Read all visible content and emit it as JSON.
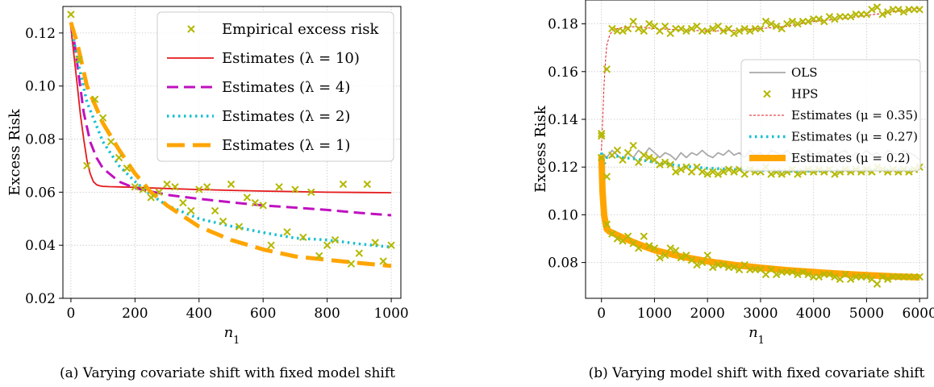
{
  "chart_data": [
    {
      "type": "line",
      "caption": "(a) Varying covariate shift with fixed model shift",
      "xlabel": "n_1",
      "ylabel": "Excess Risk",
      "xlim": [
        -25,
        1030
      ],
      "ylim": [
        0.02,
        0.13
      ],
      "xticks": [
        0,
        200,
        400,
        600,
        800,
        1000
      ],
      "yticks": [
        0.02,
        0.04,
        0.06,
        0.08,
        0.1,
        0.12
      ],
      "xtick_labels": [
        "0",
        "200",
        "400",
        "600",
        "800",
        "1000"
      ],
      "ytick_labels": [
        "0.02",
        "0.04",
        "0.06",
        "0.08",
        "0.10",
        "0.12"
      ],
      "grid": true,
      "legend_position": "top-right",
      "series": [
        {
          "name": "Empirical excess risk",
          "kind": "marker",
          "color": "#b5b800",
          "x": [
            0,
            25,
            50,
            75,
            100,
            125,
            150,
            175,
            200,
            225,
            250,
            275,
            300,
            325,
            350,
            375,
            400,
            425,
            450,
            475,
            500,
            525,
            550,
            575,
            600,
            625,
            650,
            675,
            700,
            725,
            750,
            775,
            800,
            825,
            850,
            875,
            900,
            925,
            950,
            975,
            1000
          ],
          "y": [
            0.127,
            0.11,
            0.07,
            0.095,
            0.088,
            0.079,
            0.073,
            0.069,
            0.062,
            0.061,
            0.058,
            0.06,
            0.063,
            0.062,
            0.056,
            0.053,
            0.061,
            0.062,
            0.053,
            0.049,
            0.063,
            0.047,
            0.058,
            0.056,
            0.055,
            0.04,
            0.062,
            0.045,
            0.061,
            0.043,
            0.06,
            0.036,
            0.04,
            0.042,
            0.063,
            0.033,
            0.037,
            0.063,
            0.041,
            0.034,
            0.04
          ]
        },
        {
          "name": "Estimates (λ = 10)",
          "kind": "line",
          "color": "#e41a1c",
          "dash": "solid",
          "x": [
            0,
            10,
            20,
            30,
            40,
            50,
            60,
            70,
            80,
            90,
            100,
            120,
            150,
            200,
            300,
            400,
            500,
            600,
            700,
            800,
            900,
            1000
          ],
          "y": [
            0.122,
            0.111,
            0.1,
            0.089,
            0.08,
            0.072,
            0.067,
            0.064,
            0.0628,
            0.0624,
            0.0622,
            0.0621,
            0.062,
            0.0618,
            0.0614,
            0.061,
            0.0607,
            0.0604,
            0.0602,
            0.06,
            0.0599,
            0.0598
          ]
        },
        {
          "name": "Estimates (λ = 4)",
          "kind": "line",
          "color": "#c010c0",
          "dash": "dashed",
          "x": [
            0,
            10,
            20,
            40,
            60,
            80,
            100,
            150,
            200,
            300,
            400,
            500,
            600,
            700,
            800,
            900,
            1000
          ],
          "y": [
            0.123,
            0.117,
            0.108,
            0.09,
            0.079,
            0.073,
            0.069,
            0.064,
            0.0615,
            0.059,
            0.0575,
            0.0562,
            0.055,
            0.0542,
            0.0533,
            0.0522,
            0.0513
          ]
        },
        {
          "name": "Estimates (λ = 2)",
          "kind": "line",
          "color": "#17c0d0",
          "dash": "dotted",
          "x": [
            0,
            20,
            50,
            100,
            150,
            200,
            250,
            300,
            400,
            500,
            600,
            700,
            800,
            900,
            1000
          ],
          "y": [
            0.124,
            0.11,
            0.094,
            0.079,
            0.07,
            0.064,
            0.059,
            0.055,
            0.05,
            0.0472,
            0.0448,
            0.0427,
            0.042,
            0.0405,
            0.0393
          ]
        },
        {
          "name": "Estimates (λ = 1)",
          "kind": "line",
          "color": "#ffa500",
          "dash": "longdash",
          "x": [
            0,
            20,
            50,
            100,
            150,
            200,
            250,
            300,
            400,
            500,
            600,
            700,
            800,
            900,
            1000
          ],
          "y": [
            0.124,
            0.116,
            0.1,
            0.086,
            0.076,
            0.067,
            0.06,
            0.055,
            0.047,
            0.042,
            0.0384,
            0.0358,
            0.0345,
            0.0333,
            0.0322
          ]
        }
      ]
    },
    {
      "type": "line",
      "caption": "(b) Varying model shift with fixed covariate shift",
      "xlabel": "n_1",
      "ylabel": "Excess Risk",
      "xlim": [
        -300,
        6150
      ],
      "ylim": [
        0.065,
        0.19
      ],
      "xticks": [
        0,
        1000,
        2000,
        3000,
        4000,
        5000,
        6000
      ],
      "yticks": [
        0.08,
        0.1,
        0.12,
        0.14,
        0.16,
        0.18
      ],
      "xtick_labels": [
        "0",
        "1000",
        "2000",
        "3000",
        "4000",
        "5000",
        "6000"
      ],
      "ytick_labels": [
        "0.08",
        "0.10",
        "0.12",
        "0.14",
        "0.16",
        "0.18"
      ],
      "grid": true,
      "legend_position": "center-right",
      "series": [
        {
          "name": "OLS",
          "kind": "line",
          "color": "#aaaaaa",
          "dash": "solid",
          "x": [
            0,
            100,
            200,
            300,
            400,
            500,
            600,
            700,
            800,
            900,
            1000,
            1100,
            1200,
            1300,
            1400,
            1500,
            1600,
            1700,
            1800,
            1900,
            2000,
            2100,
            2200,
            2300,
            2400,
            2500,
            2600,
            2700,
            2800,
            2900,
            3000,
            3100,
            3200,
            3300,
            3400,
            3500,
            3600,
            3700,
            3800,
            3900,
            4000,
            4100,
            4200,
            4300,
            4400,
            4500,
            4600,
            4700,
            4800,
            4900,
            5000,
            5100,
            5200,
            5300,
            5400,
            5500,
            5600,
            5700,
            5800,
            5900,
            6000
          ],
          "y": [
            0.126,
            0.124,
            0.127,
            0.125,
            0.123,
            0.126,
            0.124,
            0.127,
            0.125,
            0.128,
            0.126,
            0.124,
            0.126,
            0.125,
            0.123,
            0.126,
            0.124,
            0.126,
            0.125,
            0.127,
            0.125,
            0.124,
            0.126,
            0.125,
            0.127,
            0.125,
            0.126,
            0.124,
            0.127,
            0.125,
            0.126,
            0.124,
            0.127,
            0.126,
            0.125,
            0.127,
            0.125,
            0.126,
            0.124,
            0.127,
            0.125,
            0.126,
            0.124,
            0.127,
            0.125,
            0.126,
            0.127,
            0.124,
            0.126,
            0.125,
            0.127,
            0.125,
            0.126,
            0.124,
            0.127,
            0.126,
            0.125,
            0.127,
            0.126,
            0.125,
            0.123
          ]
        },
        {
          "name": "HPS",
          "kind": "marker",
          "color": "#b5b800",
          "x": [
            0,
            100,
            200,
            300,
            400,
            500,
            600,
            700,
            800,
            900,
            1000,
            1100,
            1200,
            1300,
            1400,
            1500,
            1600,
            1700,
            1800,
            1900,
            2000,
            2100,
            2200,
            2300,
            2400,
            2500,
            2600,
            2700,
            2800,
            2900,
            3000,
            3100,
            3200,
            3300,
            3400,
            3500,
            3600,
            3700,
            3800,
            3900,
            4000,
            4100,
            4200,
            4300,
            4400,
            4500,
            4600,
            4700,
            4800,
            4900,
            5000,
            5100,
            5200,
            5300,
            5400,
            5500,
            5600,
            5700,
            5800,
            5900,
            6000
          ],
          "y1": [
            0.133,
            0.161,
            0.178,
            0.177,
            0.177,
            0.178,
            0.181,
            0.178,
            0.177,
            0.18,
            0.179,
            0.177,
            0.179,
            0.176,
            0.178,
            0.178,
            0.177,
            0.178,
            0.179,
            0.177,
            0.177,
            0.178,
            0.179,
            0.177,
            0.178,
            0.176,
            0.177,
            0.178,
            0.177,
            0.178,
            0.178,
            0.181,
            0.18,
            0.179,
            0.178,
            0.18,
            0.181,
            0.18,
            0.181,
            0.181,
            0.182,
            0.182,
            0.181,
            0.183,
            0.182,
            0.183,
            0.183,
            0.183,
            0.184,
            0.184,
            0.184,
            0.186,
            0.187,
            0.184,
            0.185,
            0.186,
            0.186,
            0.185,
            0.186,
            0.186,
            0.186
          ],
          "y2": [
            0.134,
            0.116,
            0.125,
            0.127,
            0.123,
            0.126,
            0.129,
            0.122,
            0.125,
            0.124,
            0.123,
            0.121,
            0.122,
            0.121,
            0.118,
            0.119,
            0.12,
            0.118,
            0.12,
            0.118,
            0.117,
            0.118,
            0.117,
            0.118,
            0.119,
            0.118,
            0.119,
            0.117,
            0.119,
            0.118,
            0.118,
            0.12,
            0.117,
            0.118,
            0.117,
            0.118,
            0.119,
            0.117,
            0.118,
            0.119,
            0.118,
            0.119,
            0.118,
            0.119,
            0.117,
            0.118,
            0.119,
            0.118,
            0.119,
            0.118,
            0.119,
            0.118,
            0.12,
            0.119,
            0.118,
            0.119,
            0.118,
            0.119,
            0.118,
            0.119,
            0.12
          ],
          "y3": [
            0.124,
            0.096,
            0.092,
            0.09,
            0.089,
            0.091,
            0.088,
            0.086,
            0.091,
            0.087,
            0.086,
            0.082,
            0.083,
            0.086,
            0.085,
            0.082,
            0.083,
            0.081,
            0.079,
            0.08,
            0.083,
            0.078,
            0.079,
            0.079,
            0.078,
            0.078,
            0.077,
            0.079,
            0.077,
            0.077,
            0.077,
            0.075,
            0.077,
            0.075,
            0.076,
            0.076,
            0.076,
            0.075,
            0.076,
            0.075,
            0.074,
            0.074,
            0.075,
            0.075,
            0.074,
            0.073,
            0.075,
            0.073,
            0.074,
            0.074,
            0.074,
            0.073,
            0.071,
            0.074,
            0.073,
            0.074,
            0.074,
            0.074,
            0.074,
            0.074,
            0.074
          ]
        },
        {
          "name": "Estimates (μ = 0.35)",
          "kind": "line",
          "color": "#e41a1c",
          "dash": "thin-dashed",
          "x": [
            0,
            20,
            50,
            80,
            100,
            150,
            200,
            300,
            400,
            600,
            800,
            1000,
            1500,
            2000,
            2500,
            3000,
            3500,
            4000,
            4500,
            5000,
            5500,
            6000
          ],
          "y": [
            0.127,
            0.138,
            0.155,
            0.166,
            0.171,
            0.175,
            0.177,
            0.178,
            0.1785,
            0.1788,
            0.1785,
            0.178,
            0.1775,
            0.177,
            0.1773,
            0.178,
            0.179,
            0.181,
            0.182,
            0.1835,
            0.185,
            0.1865
          ]
        },
        {
          "name": "Estimates (μ = 0.27)",
          "kind": "line",
          "color": "#17c0d0",
          "dash": "dotted",
          "x": [
            0,
            20,
            50,
            80,
            100,
            150,
            200,
            300,
            400,
            600,
            800,
            1000,
            1500,
            2000,
            2500,
            3000,
            3500,
            4000,
            4500,
            5000,
            5500,
            6000
          ],
          "y": [
            0.126,
            0.119,
            0.121,
            0.123,
            0.124,
            0.1245,
            0.1248,
            0.1245,
            0.124,
            0.1235,
            0.1228,
            0.122,
            0.1205,
            0.1195,
            0.119,
            0.1185,
            0.1183,
            0.1183,
            0.1185,
            0.1188,
            0.1189,
            0.119
          ]
        },
        {
          "name": "Estimates (μ = 0.2)",
          "kind": "line",
          "color": "#ffa500",
          "dash": "solid-thick",
          "x": [
            0,
            20,
            50,
            80,
            100,
            150,
            200,
            300,
            400,
            600,
            800,
            1000,
            1500,
            2000,
            2500,
            3000,
            3500,
            4000,
            4500,
            5000,
            5500,
            6000
          ],
          "y": [
            0.125,
            0.11,
            0.1,
            0.096,
            0.094,
            0.093,
            0.0925,
            0.0915,
            0.0905,
            0.0885,
            0.0868,
            0.0852,
            0.0825,
            0.0805,
            0.079,
            0.0778,
            0.0768,
            0.076,
            0.0753,
            0.0747,
            0.0742,
            0.0738
          ]
        }
      ]
    }
  ]
}
